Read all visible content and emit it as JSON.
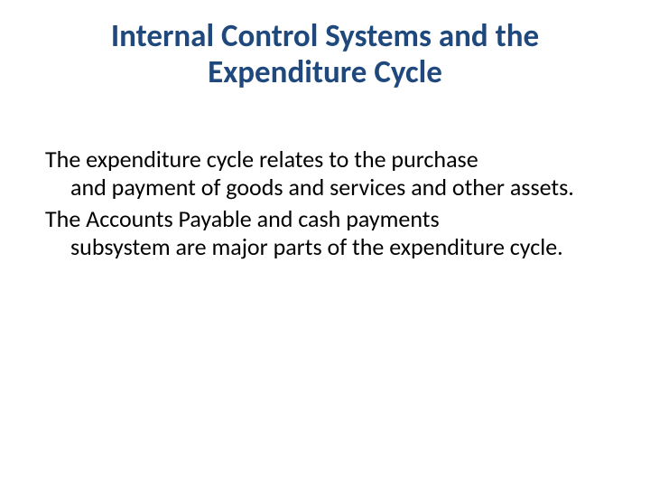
{
  "slide": {
    "title": "Internal Control Systems and the Expenditure Cycle",
    "paragraph1_line1": "The expenditure cycle relates to the purchase",
    "paragraph1_cont": "and payment of goods and services and other assets.",
    "paragraph2_line1": "The Accounts Payable and cash payments",
    "paragraph2_cont": "subsystem are major parts of the expenditure cycle.",
    "colors": {
      "title_color": "#1f497d",
      "body_color": "#000000",
      "background": "#ffffff"
    },
    "typography": {
      "title_fontsize": 35,
      "title_weight": "bold",
      "body_fontsize": 26,
      "font_family": "Calibri"
    }
  }
}
